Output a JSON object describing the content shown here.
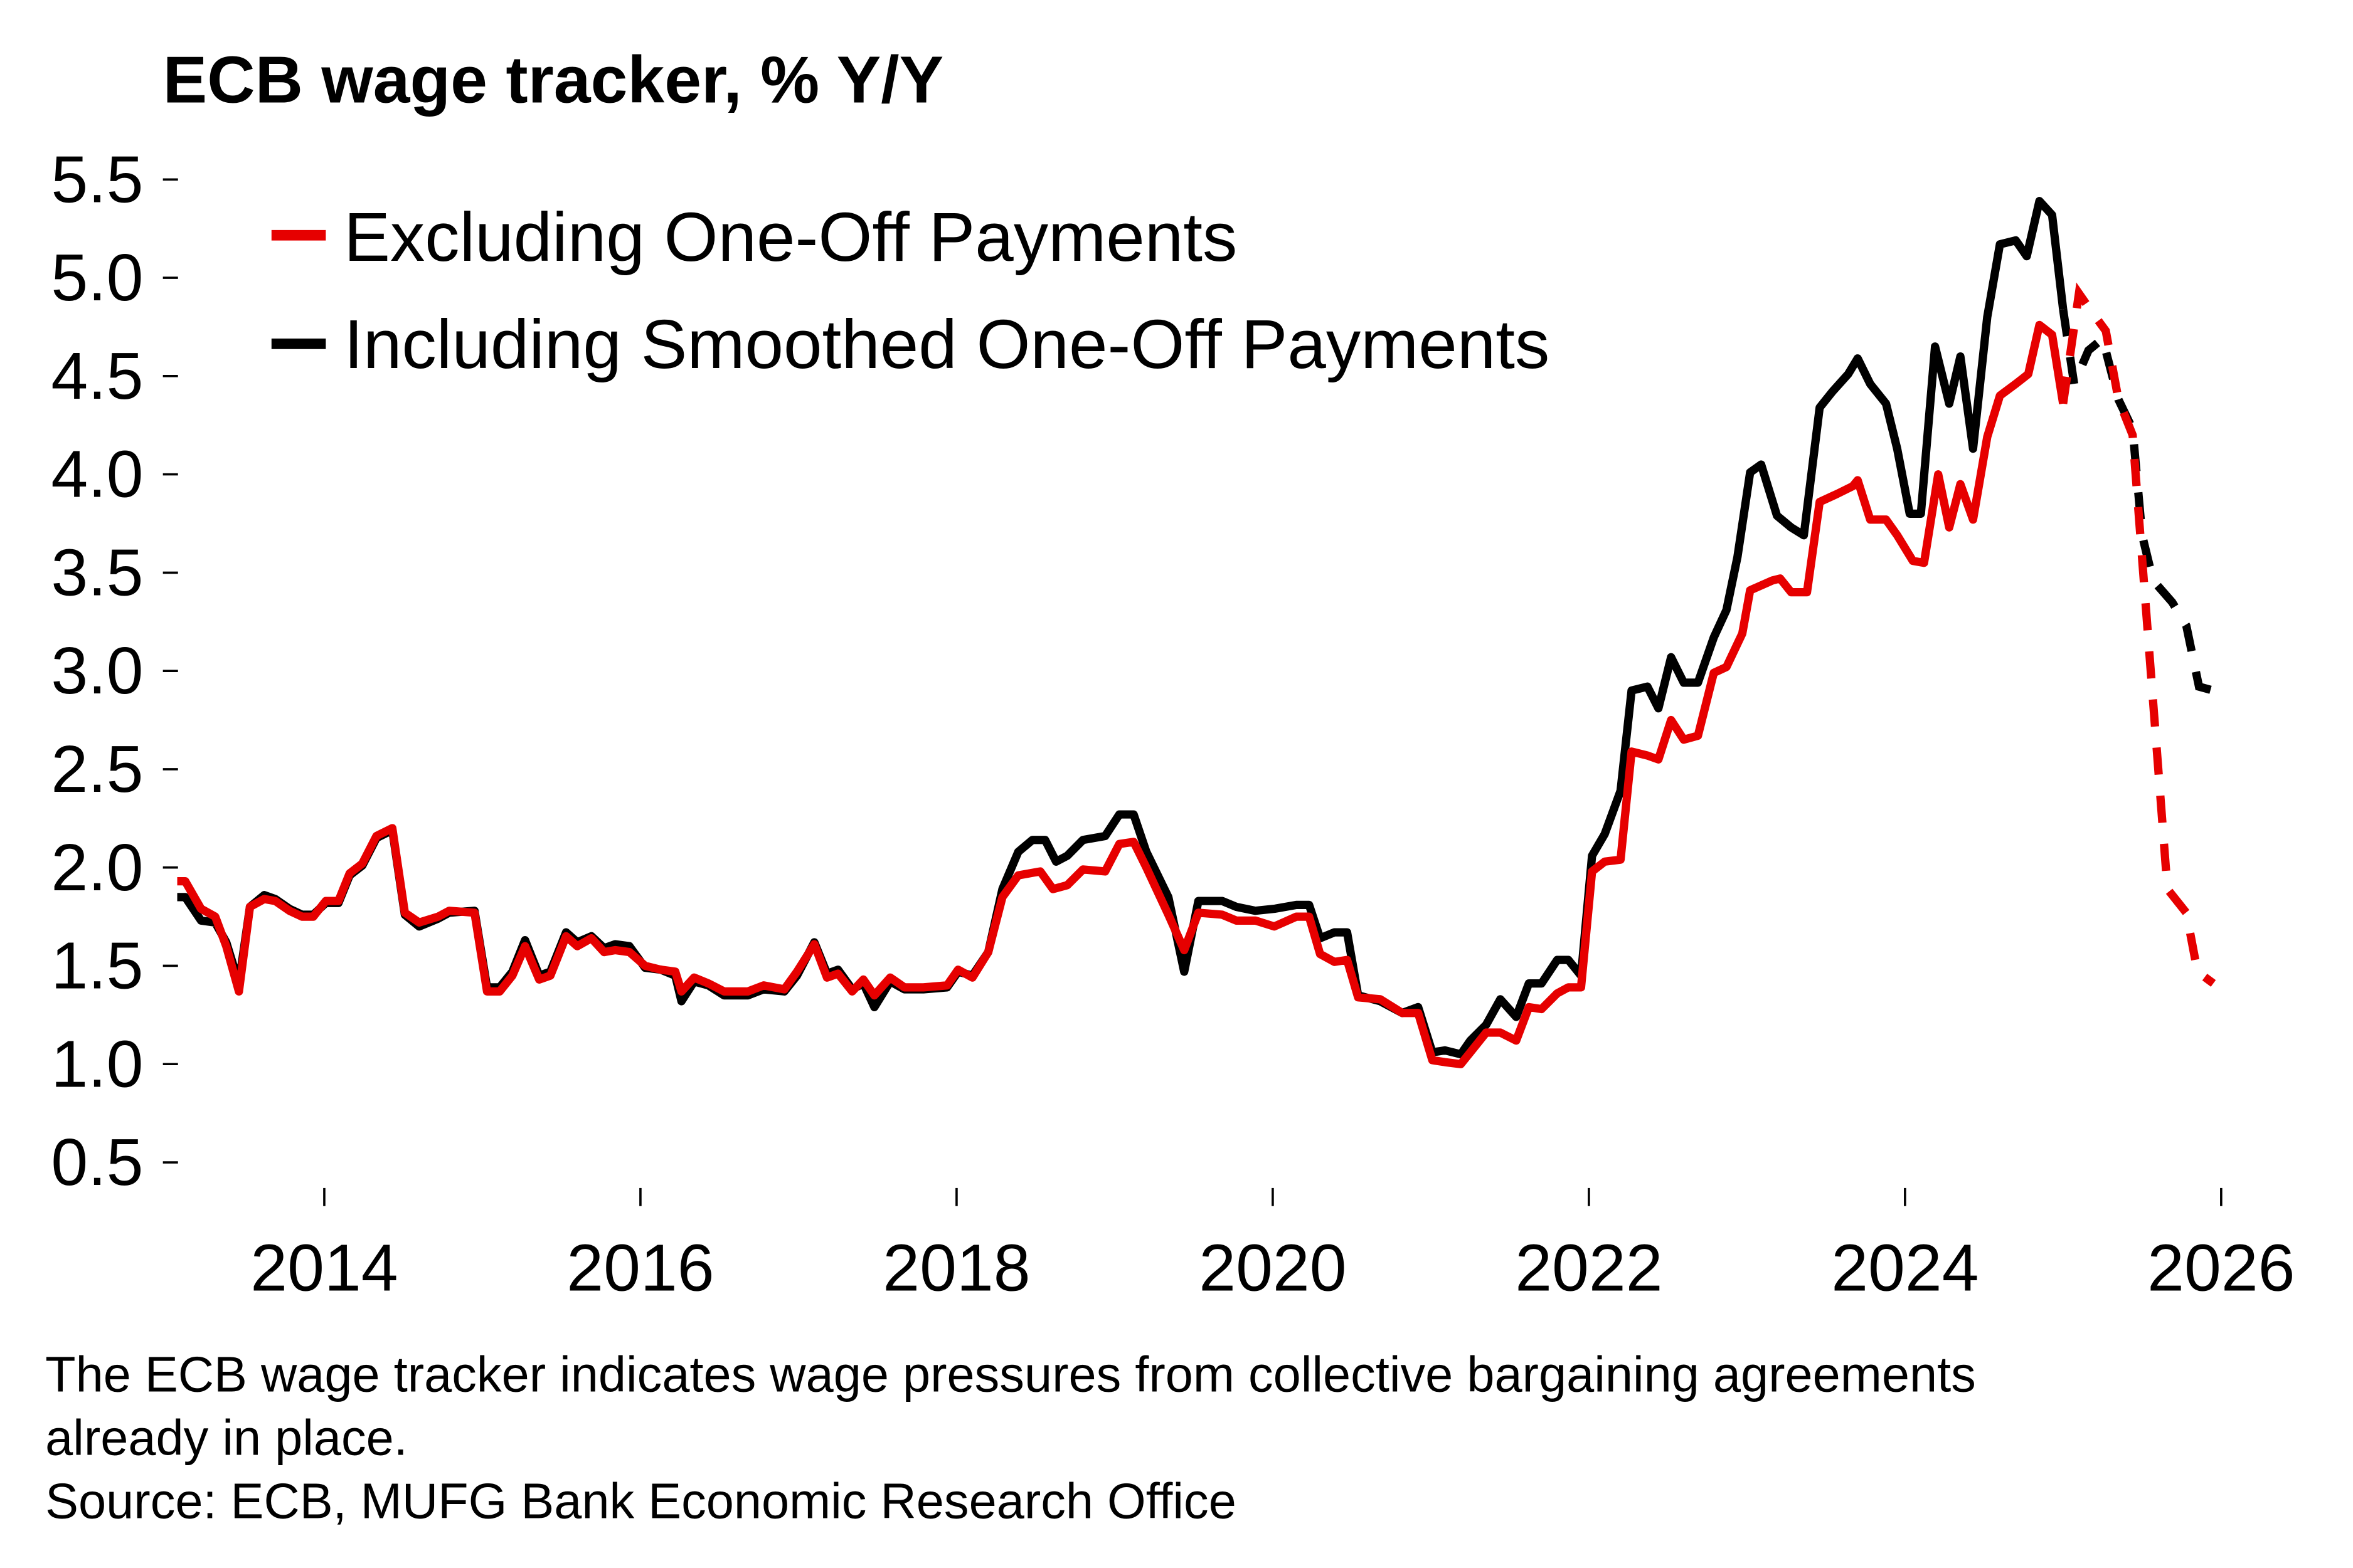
{
  "chart_data": {
    "type": "line",
    "title": "ECB wage tracker, % Y/Y",
    "xlabel": "",
    "ylabel": "",
    "xlim": [
      2013.0,
      2026.1
    ],
    "ylim": [
      0.5,
      5.5
    ],
    "x_ticks": [
      "2014",
      "2016",
      "2018",
      "2020",
      "2022",
      "2024",
      "2026"
    ],
    "x_tick_values": [
      2014,
      2016,
      2018,
      2020,
      2022,
      2024,
      2026
    ],
    "y_ticks": [
      "5.5",
      "5.0",
      "4.5",
      "4.0",
      "3.5",
      "3.0",
      "2.5",
      "2.0",
      "1.5",
      "1.0",
      "0.5"
    ],
    "y_tick_values": [
      5.5,
      5.0,
      4.5,
      4.0,
      3.5,
      3.0,
      2.5,
      2.0,
      1.5,
      1.0,
      0.5
    ],
    "grid": false,
    "legend_position": "top-left",
    "series": [
      {
        "name": "Excluding One-Off Payments",
        "color": "#e60000",
        "actual": [
          [
            2013.07,
            1.93
          ],
          [
            2013.12,
            1.93
          ],
          [
            2013.22,
            1.79
          ],
          [
            2013.31,
            1.75
          ],
          [
            2013.38,
            1.6
          ],
          [
            2013.46,
            1.37
          ],
          [
            2013.53,
            1.8
          ],
          [
            2013.62,
            1.84
          ],
          [
            2013.69,
            1.83
          ],
          [
            2013.78,
            1.78
          ],
          [
            2013.86,
            1.75
          ],
          [
            2013.93,
            1.75
          ],
          [
            2014.01,
            1.83
          ],
          [
            2014.09,
            1.83
          ],
          [
            2014.16,
            1.97
          ],
          [
            2014.24,
            2.02
          ],
          [
            2014.33,
            2.16
          ],
          [
            2014.43,
            2.2
          ],
          [
            2014.51,
            1.77
          ],
          [
            2014.6,
            1.72
          ],
          [
            2014.72,
            1.75
          ],
          [
            2014.79,
            1.78
          ],
          [
            2014.95,
            1.77
          ],
          [
            2015.03,
            1.37
          ],
          [
            2015.11,
            1.37
          ],
          [
            2015.19,
            1.45
          ],
          [
            2015.27,
            1.6
          ],
          [
            2015.36,
            1.43
          ],
          [
            2015.43,
            1.45
          ],
          [
            2015.53,
            1.65
          ],
          [
            2015.6,
            1.6
          ],
          [
            2015.69,
            1.64
          ],
          [
            2015.77,
            1.57
          ],
          [
            2015.84,
            1.58
          ],
          [
            2015.93,
            1.57
          ],
          [
            2016.03,
            1.5
          ],
          [
            2016.13,
            1.48
          ],
          [
            2016.22,
            1.47
          ],
          [
            2016.26,
            1.37
          ],
          [
            2016.34,
            1.44
          ],
          [
            2016.43,
            1.41
          ],
          [
            2016.53,
            1.37
          ],
          [
            2016.68,
            1.37
          ],
          [
            2016.78,
            1.4
          ],
          [
            2016.91,
            1.38
          ],
          [
            2016.99,
            1.47
          ],
          [
            2017.1,
            1.61
          ],
          [
            2017.18,
            1.44
          ],
          [
            2017.25,
            1.46
          ],
          [
            2017.34,
            1.37
          ],
          [
            2017.41,
            1.43
          ],
          [
            2017.48,
            1.35
          ],
          [
            2017.58,
            1.44
          ],
          [
            2017.67,
            1.39
          ],
          [
            2017.79,
            1.39
          ],
          [
            2017.94,
            1.4
          ],
          [
            2018.01,
            1.48
          ],
          [
            2018.1,
            1.44
          ],
          [
            2018.2,
            1.57
          ],
          [
            2018.29,
            1.85
          ],
          [
            2018.39,
            1.96
          ],
          [
            2018.53,
            1.98
          ],
          [
            2018.61,
            1.89
          ],
          [
            2018.7,
            1.91
          ],
          [
            2018.8,
            1.99
          ],
          [
            2018.94,
            1.98
          ],
          [
            2019.03,
            2.12
          ],
          [
            2019.12,
            2.13
          ],
          [
            2019.2,
            2.0
          ],
          [
            2019.34,
            1.76
          ],
          [
            2019.44,
            1.58
          ],
          [
            2019.53,
            1.77
          ],
          [
            2019.68,
            1.76
          ],
          [
            2019.77,
            1.73
          ],
          [
            2019.89,
            1.73
          ],
          [
            2020.01,
            1.7
          ],
          [
            2020.15,
            1.75
          ],
          [
            2020.23,
            1.75
          ],
          [
            2020.3,
            1.56
          ],
          [
            2020.39,
            1.52
          ],
          [
            2020.47,
            1.53
          ],
          [
            2020.54,
            1.34
          ],
          [
            2020.68,
            1.33
          ],
          [
            2020.82,
            1.26
          ],
          [
            2020.92,
            1.26
          ],
          [
            2021.01,
            1.02
          ],
          [
            2021.09,
            1.01
          ],
          [
            2021.19,
            1.0
          ],
          [
            2021.25,
            1.06
          ],
          [
            2021.35,
            1.16
          ],
          [
            2021.44,
            1.16
          ],
          [
            2021.54,
            1.12
          ],
          [
            2021.62,
            1.29
          ],
          [
            2021.7,
            1.28
          ],
          [
            2021.8,
            1.36
          ],
          [
            2021.87,
            1.39
          ],
          [
            2021.95,
            1.39
          ],
          [
            2022.02,
            1.98
          ],
          [
            2022.1,
            2.03
          ],
          [
            2022.2,
            2.04
          ],
          [
            2022.27,
            2.59
          ],
          [
            2022.37,
            2.57
          ],
          [
            2022.44,
            2.55
          ],
          [
            2022.52,
            2.75
          ],
          [
            2022.6,
            2.65
          ],
          [
            2022.69,
            2.67
          ],
          [
            2022.79,
            2.99
          ],
          [
            2022.87,
            3.02
          ],
          [
            2022.97,
            3.19
          ],
          [
            2023.02,
            3.41
          ],
          [
            2023.16,
            3.46
          ],
          [
            2023.21,
            3.47
          ],
          [
            2023.28,
            3.4
          ],
          [
            2023.38,
            3.4
          ],
          [
            2023.46,
            3.86
          ],
          [
            2023.57,
            3.9
          ],
          [
            2023.67,
            3.94
          ],
          [
            2023.7,
            3.97
          ],
          [
            2023.78,
            3.77
          ],
          [
            2023.88,
            3.77
          ],
          [
            2023.95,
            3.69
          ],
          [
            2024.05,
            3.56
          ],
          [
            2024.12,
            3.55
          ],
          [
            2024.21,
            4.0
          ],
          [
            2024.28,
            3.73
          ],
          [
            2024.35,
            3.95
          ],
          [
            2024.43,
            3.77
          ],
          [
            2024.52,
            4.19
          ],
          [
            2024.6,
            4.4
          ],
          [
            2024.7,
            4.46
          ],
          [
            2024.78,
            4.51
          ],
          [
            2024.85,
            4.76
          ],
          [
            2024.93,
            4.71
          ],
          [
            2025.0,
            4.36
          ]
        ],
        "forecast": [
          [
            2025.0,
            4.36
          ],
          [
            2025.1,
            4.92
          ],
          [
            2025.17,
            4.84
          ],
          [
            2025.27,
            4.73
          ],
          [
            2025.35,
            4.38
          ],
          [
            2025.44,
            4.2
          ],
          [
            2025.66,
            1.89
          ],
          [
            2025.78,
            1.77
          ],
          [
            2025.85,
            1.47
          ],
          [
            2025.95,
            1.41
          ]
        ]
      },
      {
        "name": "Including Smoothed One-Off Payments",
        "color": "#000000",
        "actual": [
          [
            2013.07,
            1.85
          ],
          [
            2013.12,
            1.85
          ],
          [
            2013.22,
            1.73
          ],
          [
            2013.31,
            1.72
          ],
          [
            2013.38,
            1.62
          ],
          [
            2013.46,
            1.41
          ],
          [
            2013.53,
            1.8
          ],
          [
            2013.62,
            1.86
          ],
          [
            2013.69,
            1.84
          ],
          [
            2013.78,
            1.79
          ],
          [
            2013.86,
            1.76
          ],
          [
            2013.93,
            1.76
          ],
          [
            2014.01,
            1.82
          ],
          [
            2014.09,
            1.82
          ],
          [
            2014.16,
            1.96
          ],
          [
            2014.24,
            2.01
          ],
          [
            2014.33,
            2.15
          ],
          [
            2014.43,
            2.19
          ],
          [
            2014.51,
            1.76
          ],
          [
            2014.6,
            1.7
          ],
          [
            2014.72,
            1.74
          ],
          [
            2014.79,
            1.77
          ],
          [
            2014.95,
            1.78
          ],
          [
            2015.03,
            1.39
          ],
          [
            2015.11,
            1.39
          ],
          [
            2015.19,
            1.47
          ],
          [
            2015.27,
            1.63
          ],
          [
            2015.36,
            1.45
          ],
          [
            2015.43,
            1.47
          ],
          [
            2015.53,
            1.67
          ],
          [
            2015.6,
            1.62
          ],
          [
            2015.69,
            1.65
          ],
          [
            2015.77,
            1.59
          ],
          [
            2015.84,
            1.61
          ],
          [
            2015.93,
            1.6
          ],
          [
            2016.03,
            1.49
          ],
          [
            2016.13,
            1.48
          ],
          [
            2016.22,
            1.45
          ],
          [
            2016.26,
            1.32
          ],
          [
            2016.34,
            1.42
          ],
          [
            2016.43,
            1.4
          ],
          [
            2016.53,
            1.35
          ],
          [
            2016.68,
            1.35
          ],
          [
            2016.78,
            1.38
          ],
          [
            2016.91,
            1.37
          ],
          [
            2016.99,
            1.45
          ],
          [
            2017.1,
            1.62
          ],
          [
            2017.18,
            1.46
          ],
          [
            2017.25,
            1.48
          ],
          [
            2017.34,
            1.38
          ],
          [
            2017.41,
            1.41
          ],
          [
            2017.48,
            1.29
          ],
          [
            2017.58,
            1.42
          ],
          [
            2017.67,
            1.38
          ],
          [
            2017.79,
            1.38
          ],
          [
            2017.94,
            1.39
          ],
          [
            2018.01,
            1.47
          ],
          [
            2018.1,
            1.45
          ],
          [
            2018.2,
            1.57
          ],
          [
            2018.29,
            1.89
          ],
          [
            2018.39,
            2.08
          ],
          [
            2018.48,
            2.14
          ],
          [
            2018.56,
            2.14
          ],
          [
            2018.63,
            2.03
          ],
          [
            2018.7,
            2.06
          ],
          [
            2018.8,
            2.14
          ],
          [
            2018.94,
            2.16
          ],
          [
            2019.03,
            2.27
          ],
          [
            2019.12,
            2.27
          ],
          [
            2019.2,
            2.08
          ],
          [
            2019.34,
            1.85
          ],
          [
            2019.44,
            1.47
          ],
          [
            2019.53,
            1.83
          ],
          [
            2019.68,
            1.83
          ],
          [
            2019.77,
            1.8
          ],
          [
            2019.89,
            1.78
          ],
          [
            2020.01,
            1.79
          ],
          [
            2020.15,
            1.81
          ],
          [
            2020.23,
            1.81
          ],
          [
            2020.3,
            1.64
          ],
          [
            2020.39,
            1.67
          ],
          [
            2020.47,
            1.67
          ],
          [
            2020.54,
            1.35
          ],
          [
            2020.68,
            1.32
          ],
          [
            2020.82,
            1.26
          ],
          [
            2020.92,
            1.29
          ],
          [
            2021.01,
            1.06
          ],
          [
            2021.09,
            1.07
          ],
          [
            2021.19,
            1.05
          ],
          [
            2021.25,
            1.12
          ],
          [
            2021.35,
            1.2
          ],
          [
            2021.44,
            1.33
          ],
          [
            2021.54,
            1.24
          ],
          [
            2021.62,
            1.41
          ],
          [
            2021.7,
            1.41
          ],
          [
            2021.8,
            1.53
          ],
          [
            2021.87,
            1.53
          ],
          [
            2021.95,
            1.45
          ],
          [
            2022.02,
            2.06
          ],
          [
            2022.1,
            2.17
          ],
          [
            2022.2,
            2.39
          ],
          [
            2022.27,
            2.9
          ],
          [
            2022.37,
            2.92
          ],
          [
            2022.44,
            2.81
          ],
          [
            2022.52,
            3.07
          ],
          [
            2022.6,
            2.94
          ],
          [
            2022.69,
            2.94
          ],
          [
            2022.79,
            3.17
          ],
          [
            2022.87,
            3.31
          ],
          [
            2022.94,
            3.58
          ],
          [
            2023.02,
            4.01
          ],
          [
            2023.09,
            4.05
          ],
          [
            2023.19,
            3.79
          ],
          [
            2023.28,
            3.73
          ],
          [
            2023.36,
            3.69
          ],
          [
            2023.46,
            4.34
          ],
          [
            2023.54,
            4.42
          ],
          [
            2023.64,
            4.51
          ],
          [
            2023.7,
            4.59
          ],
          [
            2023.78,
            4.46
          ],
          [
            2023.88,
            4.36
          ],
          [
            2023.95,
            4.13
          ],
          [
            2024.03,
            3.8
          ],
          [
            2024.1,
            3.8
          ],
          [
            2024.19,
            4.65
          ],
          [
            2024.28,
            4.36
          ],
          [
            2024.35,
            4.6
          ],
          [
            2024.43,
            4.13
          ],
          [
            2024.52,
            4.8
          ],
          [
            2024.6,
            5.17
          ],
          [
            2024.7,
            5.19
          ],
          [
            2024.77,
            5.11
          ],
          [
            2024.85,
            5.39
          ],
          [
            2024.93,
            5.32
          ],
          [
            2025.0,
            4.84
          ]
        ],
        "forecast": [
          [
            2025.0,
            4.84
          ],
          [
            2025.07,
            4.46
          ],
          [
            2025.16,
            4.63
          ],
          [
            2025.25,
            4.69
          ],
          [
            2025.35,
            4.38
          ],
          [
            2025.44,
            4.23
          ],
          [
            2025.5,
            3.69
          ],
          [
            2025.57,
            3.46
          ],
          [
            2025.69,
            3.35
          ],
          [
            2025.78,
            3.23
          ],
          [
            2025.86,
            2.92
          ],
          [
            2025.95,
            2.9
          ]
        ]
      }
    ]
  },
  "footnote": {
    "line1": "The ECB wage tracker indicates wage pressures from collective bargaining agreements",
    "line2": "already in place.",
    "source": "Source: ECB, MUFG Bank Economic Research Office"
  }
}
